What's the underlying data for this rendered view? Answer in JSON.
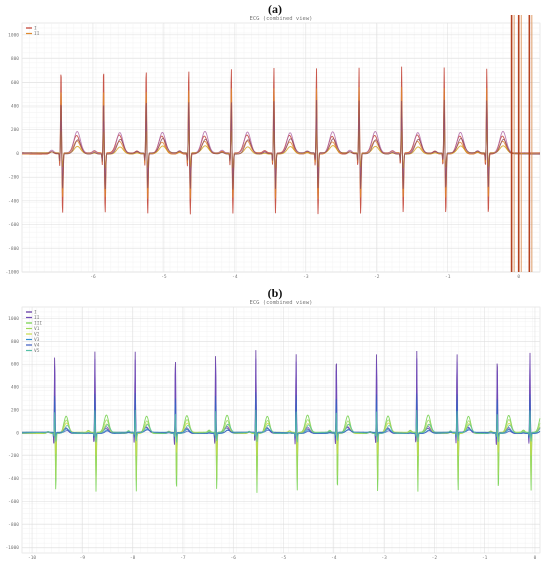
{
  "panels": [
    {
      "label": "(a)"
    },
    {
      "label": "(b)"
    }
  ],
  "chart_data": [
    {
      "type": "line",
      "panel": "(a)",
      "title": "ECG (combined view)",
      "ylim": [
        -1000,
        1100
      ],
      "xlim": [
        -7,
        0.3
      ],
      "grid": true,
      "legend": "top-left",
      "y_ticks": [
        1000,
        800,
        600,
        400,
        200,
        0,
        -200,
        -400,
        -600,
        -800,
        -1000
      ],
      "x_ticks": [
        -6,
        -5,
        -4,
        -3,
        -2,
        -1,
        0
      ],
      "beats_x": [
        -6.45,
        -5.85,
        -5.25,
        -4.65,
        -4.05,
        -3.45,
        -2.85,
        -2.25,
        -1.65,
        -1.05,
        -0.45
      ],
      "series": [
        {
          "name": "I",
          "color": "#c0392b",
          "r_peak": 730,
          "s_trough": -510,
          "t_wave": 150
        },
        {
          "name": "II",
          "color": "#e08a2e",
          "r_peak": 560,
          "s_trough": -380,
          "t_wave": 100
        },
        {
          "name": "",
          "color": "#b06aa8",
          "r_peak": 300,
          "s_trough": -200,
          "t_wave": 180
        },
        {
          "name": "",
          "color": "#d4a017",
          "r_peak": 200,
          "s_trough": -120,
          "t_wave": 60
        },
        {
          "name": "",
          "color": "#8e4b5e",
          "r_peak": 450,
          "s_trough": -300,
          "t_wave": 120
        }
      ],
      "artifact_bands_x": [
        -0.1,
        0.0,
        0.15
      ]
    },
    {
      "type": "line",
      "panel": "(b)",
      "title": "ECG (combined view)",
      "ylim": [
        -1050,
        1100
      ],
      "xlim": [
        -10.2,
        0.1
      ],
      "grid": true,
      "legend": "top-left",
      "y_ticks": [
        1000,
        800,
        600,
        400,
        200,
        0,
        -200,
        -400,
        -600,
        -800,
        -1000
      ],
      "x_ticks": [
        -10,
        -9,
        -8,
        -7,
        -6,
        -5,
        -4,
        -3,
        -2,
        -1,
        0
      ],
      "beats_x": [
        -9.55,
        -8.75,
        -7.95,
        -7.15,
        -6.35,
        -5.55,
        -4.75,
        -3.95,
        -3.15,
        -2.35,
        -1.55,
        -0.75,
        -0.1
      ],
      "series": [
        {
          "name": "I",
          "color": "#5a2d9c",
          "r_peak": 720,
          "s_trough": -60,
          "t_wave": 40
        },
        {
          "name": "II",
          "color": "#6f49b8",
          "r_peak": 650,
          "s_trough": -60,
          "t_wave": 50
        },
        {
          "name": "III",
          "color": "#6fcf45",
          "r_peak": 150,
          "s_trough": -520,
          "t_wave": 150
        },
        {
          "name": "V1",
          "color": "#9ed85a",
          "r_peak": 80,
          "s_trough": -420,
          "t_wave": 110
        },
        {
          "name": "V2",
          "color": "#c6d94a",
          "r_peak": 60,
          "s_trough": -200,
          "t_wave": 80
        },
        {
          "name": "V3",
          "color": "#2f8ed0",
          "r_peak": 300,
          "s_trough": -40,
          "t_wave": 30
        },
        {
          "name": "V4",
          "color": "#3b5bc0",
          "r_peak": 350,
          "s_trough": -30,
          "t_wave": 20
        },
        {
          "name": "V5",
          "color": "#56c0a8",
          "r_peak": 200,
          "s_trough": -80,
          "t_wave": 70
        }
      ]
    }
  ]
}
